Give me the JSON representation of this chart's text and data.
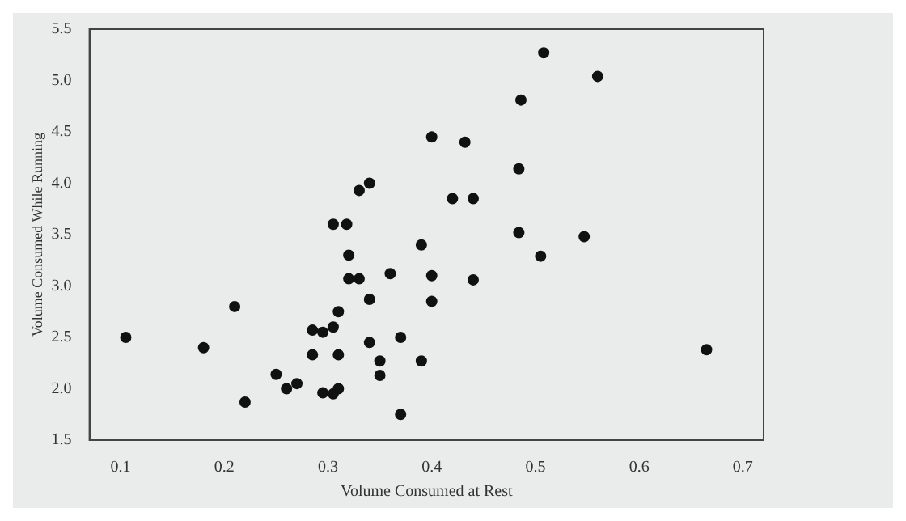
{
  "chart_data": {
    "type": "scatter",
    "xlabel": "Volume Consumed at Rest",
    "ylabel": "Volume Consumed While Running",
    "x": [
      0.105,
      0.18,
      0.21,
      0.22,
      0.25,
      0.26,
      0.27,
      0.285,
      0.295,
      0.305,
      0.285,
      0.295,
      0.305,
      0.31,
      0.31,
      0.31,
      0.305,
      0.318,
      0.32,
      0.32,
      0.33,
      0.33,
      0.34,
      0.34,
      0.34,
      0.35,
      0.35,
      0.36,
      0.37,
      0.37,
      0.39,
      0.39,
      0.4,
      0.4,
      0.4,
      0.508,
      0.56,
      0.486,
      0.432,
      0.484,
      0.42,
      0.44,
      0.484,
      0.547,
      0.505,
      0.44,
      0.665
    ],
    "values": [
      2.5,
      2.4,
      2.8,
      1.87,
      2.14,
      2.0,
      2.05,
      2.57,
      2.55,
      2.6,
      2.33,
      1.96,
      1.95,
      2.0,
      2.33,
      2.75,
      3.6,
      3.6,
      3.3,
      3.07,
      3.07,
      3.93,
      4.0,
      2.87,
      2.45,
      2.27,
      2.13,
      3.12,
      2.5,
      1.75,
      2.27,
      3.4,
      3.1,
      2.85,
      4.45,
      5.27,
      5.04,
      4.81,
      4.4,
      4.14,
      3.85,
      3.85,
      3.52,
      3.48,
      3.29,
      3.06,
      2.38
    ],
    "color": "#111111",
    "marker": "circle",
    "xlim": [
      0.07,
      0.72
    ],
    "xticks": [
      0.1,
      0.2,
      0.3,
      0.4,
      0.5,
      0.6,
      0.7
    ],
    "ylim": [
      1.5,
      5.5
    ],
    "yticks": [
      1.5,
      {
        "value": 2,
        "label": "2.0"
      },
      2.5,
      {
        "value": 3,
        "label": "3.0"
      },
      3.5,
      {
        "value": 4,
        "label": "4.0"
      },
      4.5,
      {
        "value": 5,
        "label": "5.0"
      },
      5.5
    ],
    "grid": false,
    "legend": false
  }
}
